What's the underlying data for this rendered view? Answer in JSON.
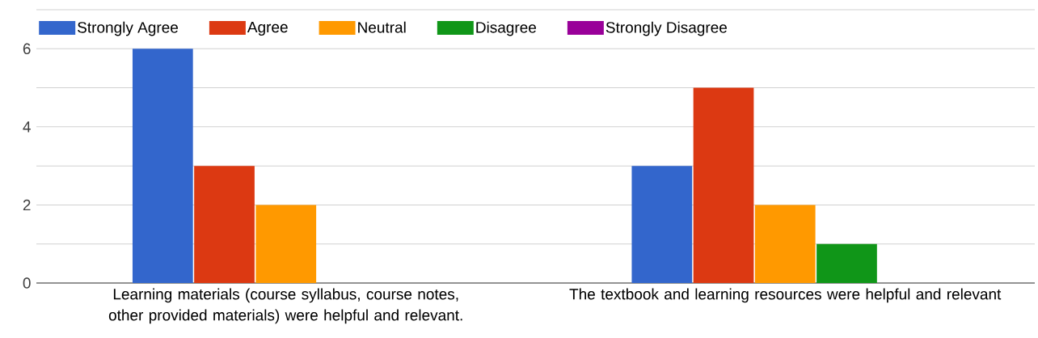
{
  "chart_data": {
    "type": "bar",
    "categories": [
      "Learning materials (course syllabus, course notes, other provided materials) were helpful and relevant.",
      "The textbook and learning resources were helpful and relevant"
    ],
    "series": [
      {
        "name": "Strongly Agree",
        "color": "#3366cc",
        "values": [
          6,
          3
        ]
      },
      {
        "name": "Agree",
        "color": "#dc3912",
        "values": [
          3,
          5
        ]
      },
      {
        "name": "Neutral",
        "color": "#ff9900",
        "values": [
          2,
          2
        ]
      },
      {
        "name": "Disagree",
        "color": "#109618",
        "values": [
          0,
          1
        ]
      },
      {
        "name": "Strongly Disagree",
        "color": "#990099",
        "values": [
          0,
          0
        ]
      }
    ],
    "ylim": [
      0,
      7
    ],
    "yticks": [
      0,
      {
        "value": 1,
        "label": null
      },
      2,
      {
        "value": 3,
        "label": null
      },
      4,
      {
        "value": 5,
        "label": null
      },
      6,
      {
        "value": 7,
        "label": null
      }
    ],
    "grid": "y",
    "legend": "top left"
  }
}
